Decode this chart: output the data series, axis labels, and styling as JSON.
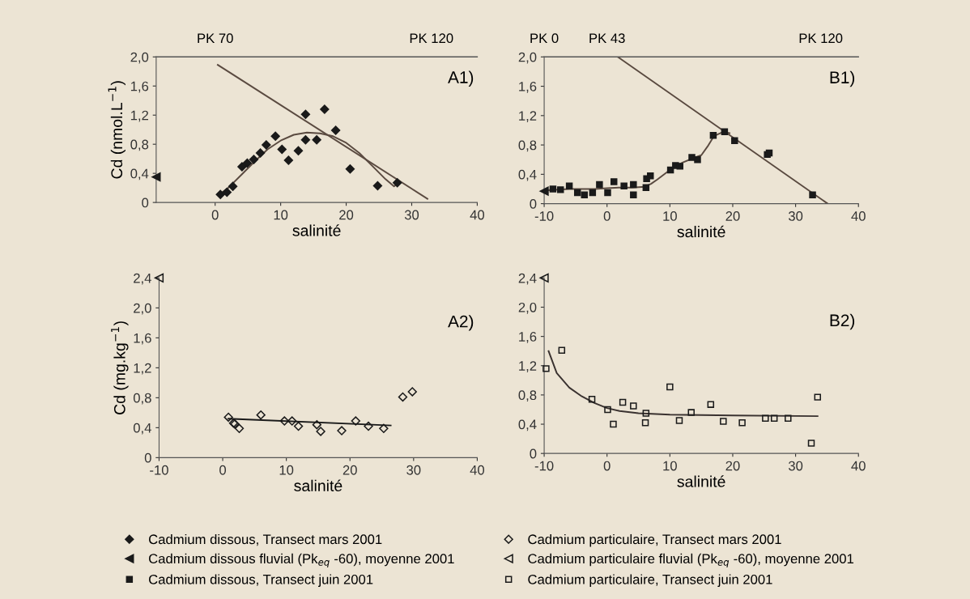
{
  "chart_data": [
    {
      "type": "scatter",
      "xlabel": "salinité",
      "ylabel": "Cd (nmol.L$^{−1}$)",
      "annotations": [
        "A1)",
        {
          "text": "PK 70",
          "x": 0,
          "y": 2.0
        },
        {
          "text": "PK 120",
          "x": 33,
          "y": 2.0
        }
      ],
      "legend": "bottom",
      "xlim": [
        -9,
        40
      ],
      "xticks": [
        0,
        10,
        20,
        30,
        40
      ],
      "ylim": [
        0,
        2.0
      ],
      "yticks": [
        0,
        {
          "value": 0.4,
          "label": "0,4"
        },
        {
          "value": 0.8,
          "label": "0,8"
        },
        {
          "value": 1.2,
          "label": "1,2"
        },
        {
          "value": 1.6,
          "label": "1,6"
        },
        {
          "value": 2.0,
          "label": "2,0"
        }
      ],
      "ref_lines": [
        {
          "axis": "y",
          "value": 2.0,
          "color": "#555555"
        }
      ],
      "series": [
        {
          "name": "Cadmium dissous, Transect mars 2001",
          "color": "#1a1a1a",
          "marker": "diamond",
          "x": [
            0.8,
            1.8,
            2.7,
            4.1,
            4.9,
            5.9,
            6.9,
            7.8,
            9.2,
            10.2,
            11.2,
            12.7,
            13.8,
            13.8,
            15.5,
            16.7,
            18.4,
            20.6,
            24.8,
            27.8
          ],
          "values": [
            0.11,
            0.14,
            0.22,
            0.49,
            0.54,
            0.59,
            0.68,
            0.79,
            0.91,
            0.73,
            0.58,
            0.71,
            1.21,
            0.86,
            0.86,
            1.28,
            0.99,
            0.46,
            0.23,
            0.27
          ]
        },
        {
          "name": "Cadmium dissous fluvial (Pk$_{eq}$ -60), moyenne 2001",
          "color": "#1a1a1a",
          "marker": "triangle",
          "x": [
            -9
          ],
          "values": [
            0.35
          ]
        },
        {
          "type": "line",
          "color": "#5a4a40",
          "line_style": "solid",
          "x": [
            0.4,
            32.4
          ],
          "values": [
            1.89,
            0.05
          ]
        },
        {
          "type": "line",
          "color": "#5a4a40",
          "line_style": "solid",
          "x": [
            0.8,
            2,
            4,
            6,
            8,
            10,
            12,
            14,
            16,
            18,
            20,
            22,
            24,
            26,
            27.3,
            28.2
          ],
          "values": [
            0.12,
            0.2,
            0.38,
            0.56,
            0.73,
            0.85,
            0.93,
            0.96,
            0.95,
            0.91,
            0.82,
            0.68,
            0.5,
            0.32,
            0.22,
            0.29
          ]
        }
      ]
    },
    {
      "type": "scatter",
      "xlabel": "salinité",
      "annotations": [
        "B1)",
        {
          "text": "PK 0",
          "x": -10,
          "y": 2.0
        },
        {
          "text": "PK 43",
          "x": 0,
          "y": 2.0
        },
        {
          "text": "PK 120",
          "x": 34,
          "y": 2.0
        }
      ],
      "legend": "bottom",
      "xlim": [
        -10,
        40
      ],
      "xticks": [
        -10,
        0,
        10,
        20,
        30,
        40
      ],
      "ylim": [
        0,
        2.0
      ],
      "yticks": [
        0,
        {
          "value": 0.4,
          "label": "0,4"
        },
        {
          "value": 0.8,
          "label": "0,8"
        },
        {
          "value": 1.2,
          "label": "1,2"
        },
        {
          "value": 1.6,
          "label": "1,6"
        },
        {
          "value": 2.0,
          "label": "2,0"
        }
      ],
      "ref_lines": [
        {
          "axis": "y",
          "value": 2.0,
          "color": "#555555"
        }
      ],
      "series": [
        {
          "name": "Cadmium dissous, Transect juin 2001",
          "color": "#1a1a1a",
          "marker": "square",
          "x": [
            -8.6,
            -7.4,
            -6,
            -4.7,
            -3.6,
            -2.3,
            -1.2,
            0.1,
            1.1,
            2.7,
            4.2,
            4.2,
            6.2,
            6.3,
            6.9,
            10.1,
            10.9,
            11.6,
            13.5,
            14.4,
            16.9,
            18.7,
            20.3,
            25.5,
            25.8,
            32.7
          ],
          "values": [
            0.2,
            0.19,
            0.24,
            0.15,
            0.12,
            0.15,
            0.26,
            0.15,
            0.3,
            0.24,
            0.26,
            0.12,
            0.22,
            0.34,
            0.38,
            0.46,
            0.52,
            0.51,
            0.63,
            0.6,
            0.93,
            0.98,
            0.86,
            0.67,
            0.69,
            0.12
          ]
        },
        {
          "name": "Cadmium dissous fluvial (Pk$_{eq}$ -60), moyenne 2001",
          "color": "#1a1a1a",
          "marker": "triangle",
          "x": [
            -10
          ],
          "values": [
            0.17
          ]
        },
        {
          "type": "line",
          "color": "#5a4a40",
          "line_style": "solid",
          "x": [
            1.7,
            35.1
          ],
          "values": [
            2.0,
            0
          ]
        },
        {
          "type": "line",
          "color": "#5a4a40",
          "line_style": "solid",
          "x": [
            -10,
            -6,
            -2,
            0,
            2,
            4,
            6,
            7,
            8,
            10,
            12,
            14,
            15,
            16,
            17,
            18.5,
            19.5
          ],
          "values": [
            0.18,
            0.2,
            0.2,
            0.21,
            0.22,
            0.22,
            0.23,
            0.27,
            0.33,
            0.46,
            0.56,
            0.63,
            0.66,
            0.78,
            0.92,
            0.98,
            0.96
          ]
        }
      ]
    },
    {
      "type": "scatter",
      "xlabel": "salinité",
      "ylabel": "Cd (mg.kg$^{−1}$)",
      "annotations": [
        "A2)"
      ],
      "legend": "bottom",
      "xlim": [
        -10,
        40
      ],
      "xticks": [
        -10,
        0,
        10,
        20,
        30,
        40
      ],
      "ylim": [
        0,
        2.4
      ],
      "yticks": [
        0,
        {
          "value": 0.4,
          "label": "0,4"
        },
        {
          "value": 0.8,
          "label": "0,8"
        },
        {
          "value": 1.2,
          "label": "1,2"
        },
        {
          "value": 1.6,
          "label": "1,6"
        },
        {
          "value": 2.0,
          "label": "2,0"
        },
        {
          "value": 2.4,
          "label": "2,4"
        }
      ],
      "series": [
        {
          "name": "Cadmium particulaire, Transect mars 2001",
          "color": "#1a1a1a",
          "marker": "diamond-open",
          "x": [
            0.9,
            1.7,
            1.9,
            2.6,
            6.0,
            9.7,
            10.9,
            11.9,
            14.8,
            15.4,
            18.7,
            20.9,
            22.9,
            25.3,
            28.3,
            29.8
          ],
          "values": [
            0.54,
            0.46,
            0.45,
            0.39,
            0.57,
            0.49,
            0.49,
            0.42,
            0.44,
            0.35,
            0.36,
            0.49,
            0.42,
            0.39,
            0.81,
            0.88
          ]
        },
        {
          "name": "Cadmium particulaire fluvial (Pk$_{eq}$ -60), moyenne 2001",
          "color": "#1a1a1a",
          "marker": "triangle-open",
          "x": [
            -10
          ],
          "values": [
            2.4
          ]
        },
        {
          "type": "line",
          "color": "#1a1a1a",
          "line_style": "solid",
          "x": [
            0.9,
            26.4
          ],
          "values": [
            0.52,
            0.43
          ]
        }
      ]
    },
    {
      "type": "scatter",
      "xlabel": "salinité",
      "annotations": [
        "B2)"
      ],
      "legend": "bottom",
      "xlim": [
        -10,
        40
      ],
      "xticks": [
        -10,
        0,
        10,
        20,
        30,
        40
      ],
      "ylim": [
        0,
        2.4
      ],
      "yticks": [
        0,
        {
          "value": 0.4,
          "label": "0,4"
        },
        {
          "value": 0.8,
          "label": "0,8"
        },
        {
          "value": 1.2,
          "label": "1,2"
        },
        {
          "value": 1.6,
          "label": "1,6"
        },
        {
          "value": 2.0,
          "label": "2,0"
        },
        {
          "value": 2.4,
          "label": "2,4"
        }
      ],
      "series": [
        {
          "name": "Cadmium particulaire, Transect juin 2001",
          "color": "#1a1a1a",
          "marker": "square-open",
          "x": [
            -9.7,
            -7.2,
            -2.4,
            0.1,
            1.0,
            2.5,
            4.2,
            6.2,
            6.1,
            10,
            11.5,
            13.4,
            16.5,
            18.5,
            21.5,
            25.2,
            26.6,
            28.8,
            32.5,
            33.5
          ],
          "values": [
            1.16,
            1.41,
            0.74,
            0.6,
            0.4,
            0.7,
            0.65,
            0.55,
            0.42,
            0.91,
            0.45,
            0.56,
            0.67,
            0.44,
            0.42,
            0.48,
            0.48,
            0.48,
            0.14,
            0.77
          ]
        },
        {
          "name": "Cadmium particulaire fluvial (Pk$_{eq}$ -60), moyenne 2001",
          "color": "#1a1a1a",
          "marker": "triangle-open",
          "x": [
            -10
          ],
          "values": [
            2.4
          ]
        },
        {
          "type": "line",
          "color": "#3a3230",
          "line_style": "solid",
          "x": [
            -9.3,
            -8,
            -6,
            -4,
            -2,
            0,
            2,
            5,
            10,
            20,
            33.5
          ],
          "values": [
            1.4,
            1.1,
            0.9,
            0.78,
            0.69,
            0.62,
            0.58,
            0.55,
            0.53,
            0.52,
            0.51
          ]
        }
      ]
    }
  ]
}
